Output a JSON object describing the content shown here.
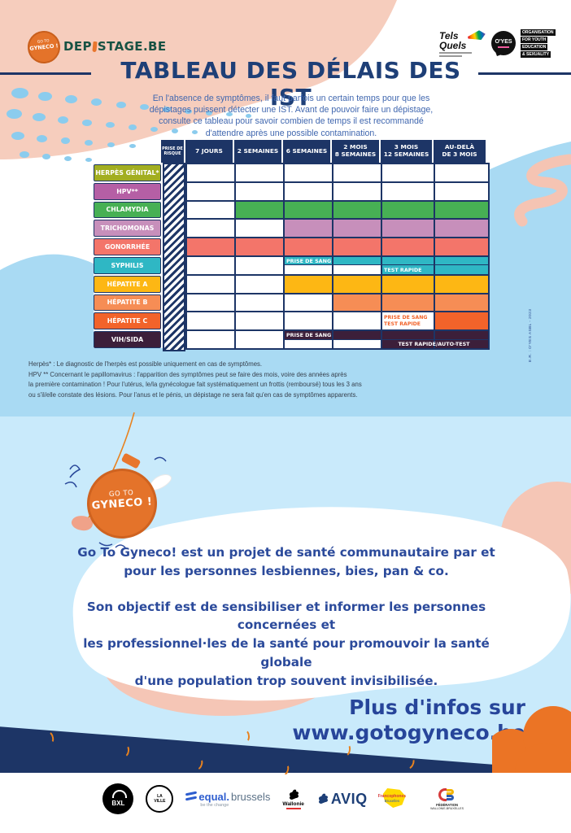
{
  "colors": {
    "navy": "#1d3566",
    "title_navy": "#1e3f77",
    "text_blue": "#27459a",
    "intro_blue": "#4067af",
    "light_blue": "#a9daf3",
    "lighter_blue": "#c9eafb",
    "pink": "#f5c6b6",
    "orange": "#e8762d",
    "brand_green": "#175243"
  },
  "header": {
    "badge_line1": "GO TO",
    "badge_line2": "GYNECO !",
    "brand_prefix": "DEP",
    "brand_suffix": "STAGE.BE",
    "tels_quels_line1": "Tels",
    "tels_quels_line2": "Quels",
    "oyes": "O'YES",
    "oyes_lines": [
      "ORGANISATION",
      "FOR YOUTH",
      "EDUCATION",
      "& SEXUALITY"
    ]
  },
  "title": "TABLEAU DES DÉLAIS DES IST",
  "intro_lines": [
    "En l'absence de symptômes, il faut parfois un certain temps pour que les",
    "dépistages puissent détecter une IST. Avant de pouvoir faire un dépistage,",
    "consulte ce tableau pour savoir combien de temps il est recommandé",
    "d'attendre après une possible contamination."
  ],
  "table": {
    "corner_l1": "PRISE DE",
    "corner_l2": "RISQUE",
    "columns": [
      {
        "l1": "7 JOURS",
        "l2": ""
      },
      {
        "l1": "2 SEMAINES",
        "l2": ""
      },
      {
        "l1": "6 SEMAINES",
        "l2": ""
      },
      {
        "l1": "2 MOIS",
        "l2": "8 SEMAINES"
      },
      {
        "l1": "3 MOIS",
        "l2": "12 SEMAINES"
      },
      {
        "l1": "AU-DELÀ",
        "l2": "DE 3 MOIS"
      }
    ],
    "rows": [
      {
        "label": "HERPÈS GÉNITAL*",
        "color": "#a2ae20",
        "cells": [
          0,
          0,
          0,
          0,
          0,
          0
        ]
      },
      {
        "label": "HPV**",
        "color": "#b55fa5",
        "cells": [
          0,
          0,
          0,
          0,
          0,
          0
        ]
      },
      {
        "label": "CHLAMYDIA",
        "color": "#47b054",
        "cells": [
          0,
          1,
          1,
          1,
          1,
          1
        ]
      },
      {
        "label": "TRICHOMONAS",
        "color": "#c78fbb",
        "cells": [
          0,
          0,
          1,
          1,
          1,
          1
        ]
      },
      {
        "label": "GONORRHÉE",
        "color": "#f3756a",
        "cells": [
          1,
          1,
          1,
          1,
          1,
          1
        ]
      },
      {
        "label": "SYPHILIS",
        "color": "#2fb7c4",
        "cells": [
          0,
          0,
          {
            "split": [
              {
                "fill": 1,
                "text": "PRISE DE SANG"
              },
              {
                "fill": 0
              }
            ]
          },
          {
            "split": [
              {
                "fill": 1
              },
              {
                "fill": 0
              }
            ]
          },
          {
            "split": [
              {
                "fill": 1
              },
              {
                "fill": 1,
                "text": "TEST RAPIDE"
              }
            ]
          },
          {
            "split": [
              {
                "fill": 1
              },
              {
                "fill": 1
              }
            ]
          }
        ]
      },
      {
        "label": "HÉPATITE A",
        "color": "#fdb714",
        "cells": [
          0,
          0,
          1,
          1,
          1,
          1
        ]
      },
      {
        "label": "HÉPATITE B",
        "color": "#f68d55",
        "cells": [
          0,
          0,
          0,
          1,
          1,
          1
        ]
      },
      {
        "label": "HÉPATITE C",
        "color": "#f2632a",
        "cells": [
          0,
          0,
          0,
          0,
          {
            "lines": [
              "PRISE DE SANG",
              "TEST RAPIDE"
            ]
          },
          1
        ]
      },
      {
        "label": "VIH/SIDA",
        "color": "#3c1f3a",
        "cells": [
          0,
          0,
          {
            "split": [
              {
                "fill": 1,
                "text": "PRISE DE SANG"
              },
              {
                "fill": 0
              }
            ]
          },
          {
            "split": [
              {
                "fill": 1
              },
              {
                "fill": 0
              }
            ]
          },
          {
            "split": [
              {
                "fill": 1
              },
              {
                "fill": 1,
                "text": "TEST RAPIDE/AUTO-TEST",
                "span": 2
              }
            ]
          },
          {
            "split": [
              {
                "fill": 1
              },
              {
                "fill": 1
              }
            ]
          }
        ]
      }
    ]
  },
  "footnote_lines": [
    "Herpès* : Le diagnostic de l'herpès est possible uniquement en cas de symptômes.",
    "HPV ** Concernant le papillomavirus : l'apparition des symptômes peut se faire des mois, voire des années après",
    "la première contamination ! Pour l'utérus, le/la gynécologue fait systématiquement un frottis (remboursé) tous les 3 ans",
    "ou s'il/elle constate des lésions. Pour l'anus et le pénis, un dépistage ne sera fait qu'en cas de symptômes apparents."
  ],
  "credit": "E.R. : O'YES ASBL - 2023",
  "gyneco_badge": {
    "line1": "GO TO",
    "line2": "GYNECO !"
  },
  "body_text": {
    "p1_lines": [
      "Go To Gyneco! est un projet de santé communautaire par et",
      "pour les personnes lesbiennes, bies, pan & co."
    ],
    "p2_lines": [
      "Son objectif est de sensibiliser et informer les personnes concernées et",
      "les professionnel·les de la santé pour promouvoir la santé globale",
      "d'une population trop souvent invisibilisée."
    ]
  },
  "more_info": {
    "line1": "Plus d'infos sur",
    "line2": "www.gotogyneco.be"
  },
  "footer_logos": {
    "bxl": "BXL",
    "ville_l1": "LA",
    "ville_l2": "VILLE",
    "equal_bold": "equal.",
    "equal_light": "brussels",
    "equal_tag": "be the change",
    "wallonie": "Wallonie",
    "aviq": "AVIQ",
    "francophones_l1": "Francophones",
    "francophones_l2": "Bruxelles",
    "federation_l1": "FÉDÉRATION",
    "federation_l2": "WALLONIE-BRUXELLES"
  }
}
